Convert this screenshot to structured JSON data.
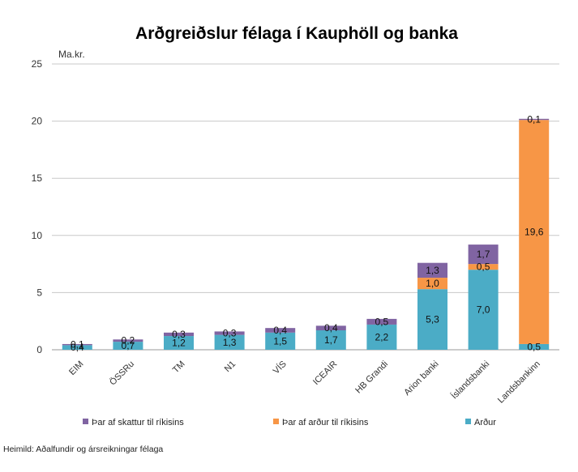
{
  "chart_data": {
    "type": "bar",
    "stacked": true,
    "title": "Arðgreiðslur félaga í Kauphöll og banka",
    "ylabel": "Ma.kr.",
    "ylim": [
      0,
      25
    ],
    "yticks": [
      0,
      5,
      10,
      15,
      20,
      25
    ],
    "grid": true,
    "legend_position": "bottom",
    "categories": [
      "EIM",
      "ÖSSRu",
      "TM",
      "N1",
      "VÍS",
      "ICEAIR",
      "HB Grandi",
      "Arion banki",
      "Íslandsbanki",
      "Landsbankinn"
    ],
    "series": [
      {
        "name": "Arður",
        "color": "#4BACC6",
        "values": [
          0.4,
          0.7,
          1.2,
          1.3,
          1.5,
          1.7,
          2.2,
          5.3,
          7.0,
          0.5
        ],
        "labels": [
          "0,4",
          "0,7",
          "1,2",
          "1,3",
          "1,5",
          "1,7",
          "2,2",
          "5,3",
          "7,0",
          "0,5"
        ]
      },
      {
        "name": "Þar af arður til ríkisins",
        "color": "#F79646",
        "values": [
          0,
          0,
          0,
          0,
          0,
          0,
          0,
          1.0,
          0.5,
          19.6
        ],
        "labels": [
          "",
          "",
          "",
          "",
          "",
          "",
          "",
          "1,0",
          "0,5",
          "19,6"
        ]
      },
      {
        "name": "Þar af skattur til ríkisins",
        "color": "#8064A2",
        "values": [
          0.1,
          0.2,
          0.3,
          0.3,
          0.4,
          0.4,
          0.5,
          1.3,
          1.7,
          0.1
        ],
        "labels": [
          "0,1",
          "0,2",
          "0,3",
          "0,3",
          "0,4",
          "0,4",
          "0,5",
          "1,3",
          "1,7",
          "0,1"
        ]
      }
    ],
    "legend_order": [
      "Þar af skattur til ríkisins",
      "Þar af arður til ríkisins",
      "Arður"
    ],
    "source": "Heimild: Aðalfundir og ársreikningar félaga"
  }
}
